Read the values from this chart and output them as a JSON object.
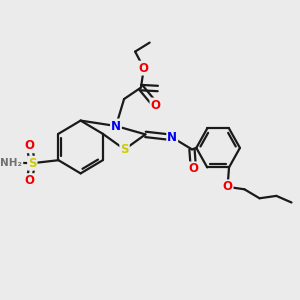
{
  "bg_color": "#ebebeb",
  "bond_color": "#1a1a1a",
  "bond_width": 1.6,
  "atom_colors": {
    "N": "#0000ee",
    "O": "#ee0000",
    "S": "#cccc00",
    "C": "#1a1a1a",
    "H": "#707070"
  },
  "font_size_atom": 8.5,
  "font_size_small": 7.5
}
